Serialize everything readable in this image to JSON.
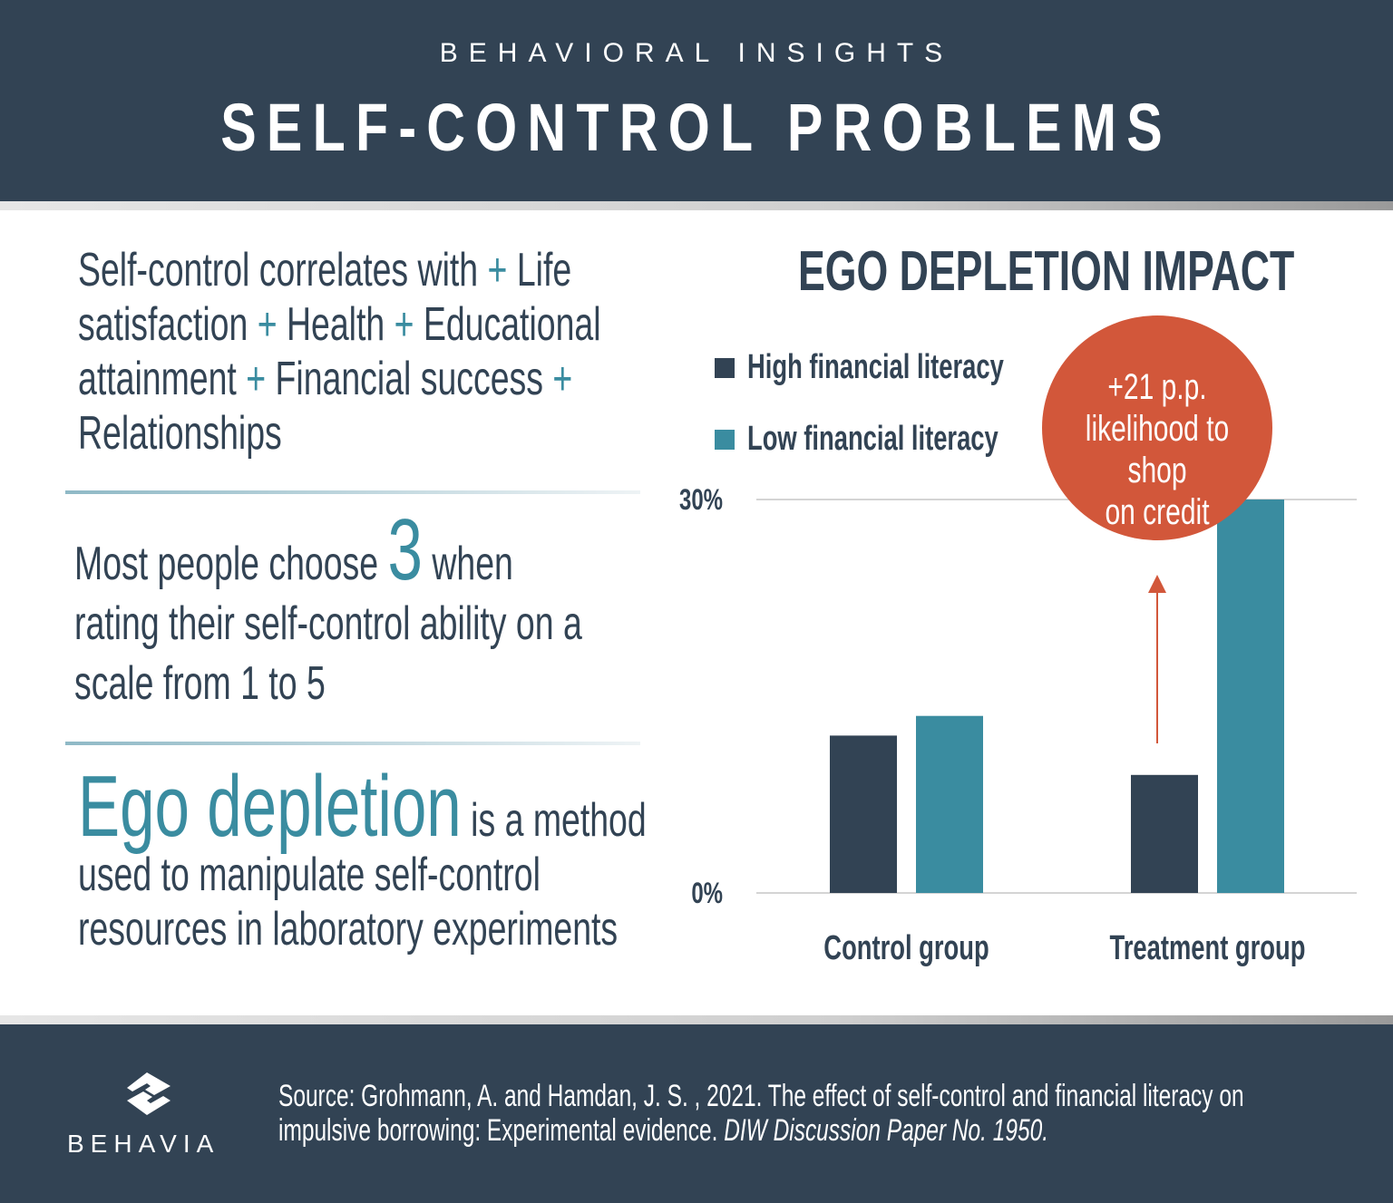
{
  "header": {
    "kicker": "BEHAVIORAL INSIGHTS",
    "title": "SELF-CONTROL PROBLEMS"
  },
  "left": {
    "p1": {
      "a": "Self-control correlates with",
      "plus": "+",
      "b": "Life",
      "c": "satisfaction",
      "d": "Health",
      "e": "Educational",
      "f": "attainment",
      "g": "Financial success",
      "h": "Relationships"
    },
    "p2": {
      "a": "Most people choose",
      "num": "3",
      "b": "when",
      "c": "rating their self-control ability on a",
      "d": "scale from 1 to 5"
    },
    "p3": {
      "highlight": "Ego depletion",
      "a": "is a method",
      "b": "used to manipulate self-control",
      "c": "resources in laboratory experiments"
    }
  },
  "chart_data": {
    "type": "bar",
    "title": "EGO DEPLETION IMPACT",
    "categories": [
      "Control group",
      "Treatment group"
    ],
    "series": [
      {
        "name": "High financial literacy",
        "color": "#324354",
        "values": [
          12,
          9
        ]
      },
      {
        "name": "Low financial literacy",
        "color": "#3a8ca0",
        "values": [
          13.5,
          30
        ]
      }
    ],
    "yticks": [
      "0%",
      "30%"
    ],
    "ylim": [
      0,
      30
    ],
    "grid": true,
    "legend": "top-left",
    "annotation": {
      "line1": "+21 p.p.",
      "line2": "likelihood to shop",
      "line3": "on credit",
      "color": "#d2573a"
    }
  },
  "footer": {
    "source": "Source: Grohmann, A. and  Hamdan, J. S. , 2021. The effect of self-control and financial literacy on impulsive borrowing: Experimental evidence.",
    "source_italic": "DIW Discussion Paper No. 1950.",
    "brand": "BEHAVIA"
  }
}
